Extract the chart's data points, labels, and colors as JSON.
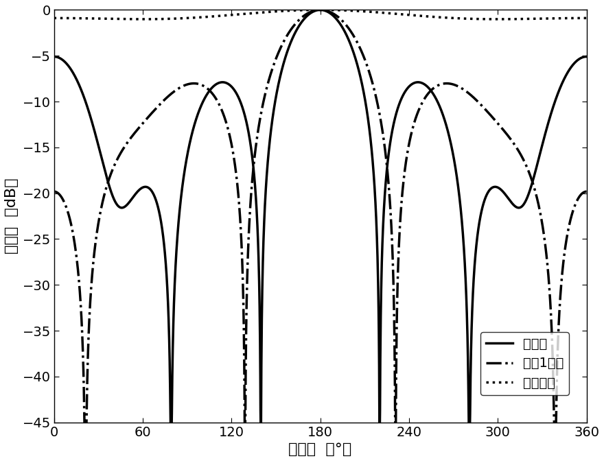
{
  "xlabel": "方位角  （°）",
  "ylabel": "波束图  （dB）",
  "xlim": [
    0,
    360
  ],
  "ylim": [
    -45,
    0
  ],
  "xticks": [
    0,
    60,
    120,
    180,
    240,
    300,
    360
  ],
  "yticks": [
    0,
    -5,
    -10,
    -15,
    -20,
    -25,
    -30,
    -35,
    -40,
    -45
  ],
  "legend_labels": [
    "本发明",
    "文献1方法",
    "常规方法"
  ],
  "background_color": "#ffffff",
  "xlabel_fontsize": 16,
  "ylabel_fontsize": 16,
  "tick_fontsize": 14,
  "legend_fontsize": 14,
  "linewidth": 2.5
}
